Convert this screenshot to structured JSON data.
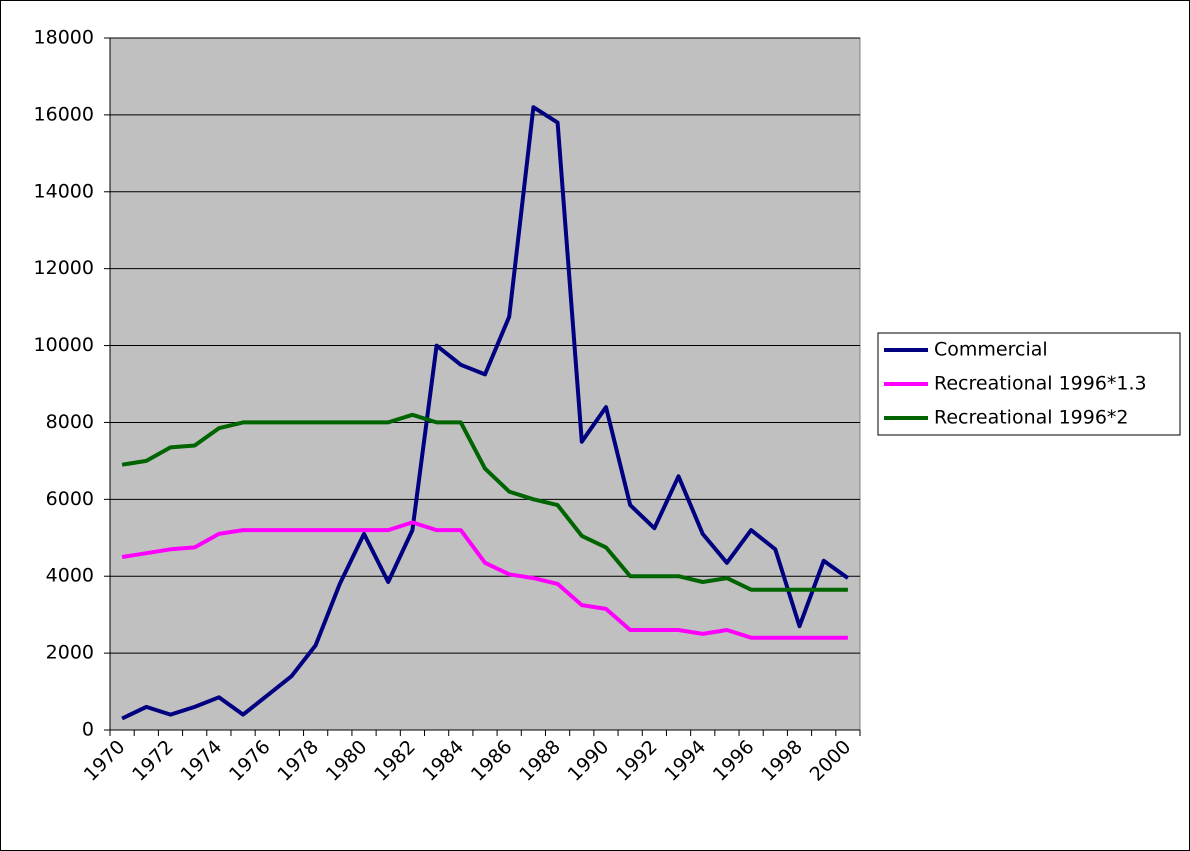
{
  "chart_data": {
    "type": "line",
    "categories": [
      "1970",
      null,
      "1972",
      null,
      "1974",
      null,
      "1976",
      null,
      "1978",
      null,
      "1980",
      null,
      "1982",
      null,
      "1984",
      null,
      "1986",
      null,
      "1988",
      null,
      "1990",
      null,
      "1992",
      null,
      "1994",
      null,
      "1996",
      null,
      "1998",
      null,
      "2000"
    ],
    "series": [
      {
        "name": "Commercial",
        "color": "#000080",
        "values": [
          300,
          600,
          400,
          600,
          850,
          400,
          900,
          1400,
          2200,
          3800,
          5100,
          3850,
          5200,
          10000,
          9500,
          9250,
          10750,
          16200,
          15800,
          7500,
          8400,
          5850,
          5250,
          6600,
          5100,
          4350,
          5200,
          4700,
          2700,
          4400,
          3950
        ]
      },
      {
        "name": "Recreational 1996*1.3",
        "color": "#ff00ff",
        "values": [
          4500,
          4600,
          4700,
          4750,
          5100,
          5200,
          5200,
          5200,
          5200,
          5200,
          5200,
          5200,
          5400,
          5200,
          5200,
          4350,
          4050,
          3950,
          3800,
          3250,
          3150,
          2600,
          2600,
          2600,
          2500,
          2600,
          2400,
          2400,
          2400,
          2400,
          2400
        ]
      },
      {
        "name": "Recreational 1996*2",
        "color": "#006400",
        "values": [
          6900,
          7000,
          7350,
          7400,
          7850,
          8000,
          8000,
          8000,
          8000,
          8000,
          8000,
          8000,
          8200,
          8000,
          8000,
          6800,
          6200,
          6000,
          5850,
          5050,
          4750,
          4000,
          4000,
          4000,
          3850,
          3950,
          3650,
          3650,
          3650,
          3650,
          3650
        ]
      }
    ],
    "ylim": [
      0,
      18000
    ],
    "yticks": [
      0,
      2000,
      4000,
      6000,
      8000,
      10000,
      12000,
      14000,
      16000,
      18000
    ],
    "grid": true,
    "legend": "right",
    "plot_background": "#c0c0c0"
  }
}
